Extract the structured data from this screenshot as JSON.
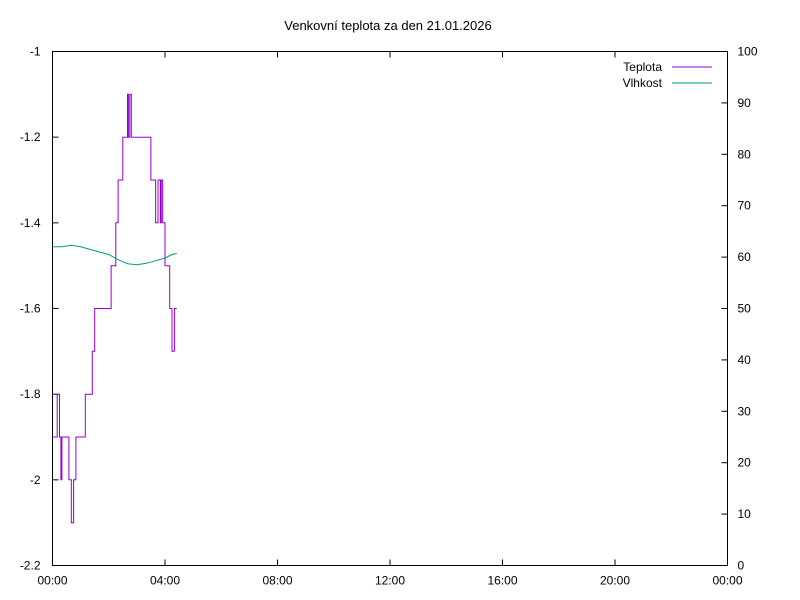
{
  "chart_data": {
    "type": "line",
    "title": "Venkovní teplota za den 21.01.2026",
    "x_ticks": [
      "00:00",
      "04:00",
      "08:00",
      "12:00",
      "16:00",
      "20:00",
      "00:00"
    ],
    "xlim_hours": [
      0,
      24
    ],
    "y_left": {
      "range": [
        -2.2,
        -1
      ],
      "ticks": [
        -2.2,
        -2,
        -1.8,
        -1.6,
        -1.4,
        -1.2,
        -1
      ],
      "tick_labels": [
        "-2.2",
        "-2",
        "-1.8",
        "-1.6",
        "-1.4",
        "-1.2",
        "-1"
      ]
    },
    "y_right": {
      "range": [
        0,
        100
      ],
      "ticks": [
        0,
        10,
        20,
        30,
        40,
        50,
        60,
        70,
        80,
        90,
        100
      ],
      "tick_labels": [
        "0",
        "10",
        "20",
        "30",
        "40",
        "50",
        "60",
        "70",
        "80",
        "90",
        "100"
      ]
    },
    "grid": false,
    "legend_position": "top-right",
    "series": [
      {
        "name": "Teplota",
        "axis": "left",
        "color": "#9400d3",
        "step": true,
        "points": [
          [
            "00:00",
            -1.9
          ],
          [
            "00:10",
            -1.8
          ],
          [
            "00:15",
            -1.9
          ],
          [
            "00:18",
            -2.0
          ],
          [
            "00:20",
            -1.9
          ],
          [
            "00:35",
            -2.0
          ],
          [
            "00:40",
            -2.1
          ],
          [
            "00:45",
            -2.0
          ],
          [
            "00:50",
            -1.9
          ],
          [
            "01:10",
            -1.8
          ],
          [
            "01:25",
            -1.7
          ],
          [
            "01:30",
            -1.6
          ],
          [
            "02:05",
            -1.5
          ],
          [
            "02:15",
            -1.4
          ],
          [
            "02:20",
            -1.3
          ],
          [
            "02:30",
            -1.2
          ],
          [
            "02:40",
            -1.1
          ],
          [
            "02:42",
            -1.2
          ],
          [
            "02:45",
            -1.1
          ],
          [
            "02:48",
            -1.2
          ],
          [
            "03:30",
            -1.3
          ],
          [
            "03:40",
            -1.4
          ],
          [
            "03:45",
            -1.3
          ],
          [
            "03:50",
            -1.4
          ],
          [
            "03:52",
            -1.3
          ],
          [
            "03:55",
            -1.4
          ],
          [
            "04:00",
            -1.5
          ],
          [
            "04:10",
            -1.6
          ],
          [
            "04:15",
            -1.7
          ],
          [
            "04:20",
            -1.6
          ],
          [
            "04:25",
            -1.6
          ]
        ]
      },
      {
        "name": "Vlhkost",
        "axis": "right",
        "color": "#009e73",
        "step": false,
        "points": [
          [
            "00:00",
            62
          ],
          [
            "00:20",
            62
          ],
          [
            "00:40",
            62.3
          ],
          [
            "01:00",
            62
          ],
          [
            "01:20",
            61.5
          ],
          [
            "01:40",
            61
          ],
          [
            "02:00",
            60.5
          ],
          [
            "02:20",
            59.5
          ],
          [
            "02:40",
            58.7
          ],
          [
            "03:00",
            58.5
          ],
          [
            "03:20",
            58.8
          ],
          [
            "03:40",
            59.3
          ],
          [
            "04:00",
            59.8
          ],
          [
            "04:15",
            60.5
          ],
          [
            "04:25",
            60.7
          ]
        ]
      }
    ]
  }
}
